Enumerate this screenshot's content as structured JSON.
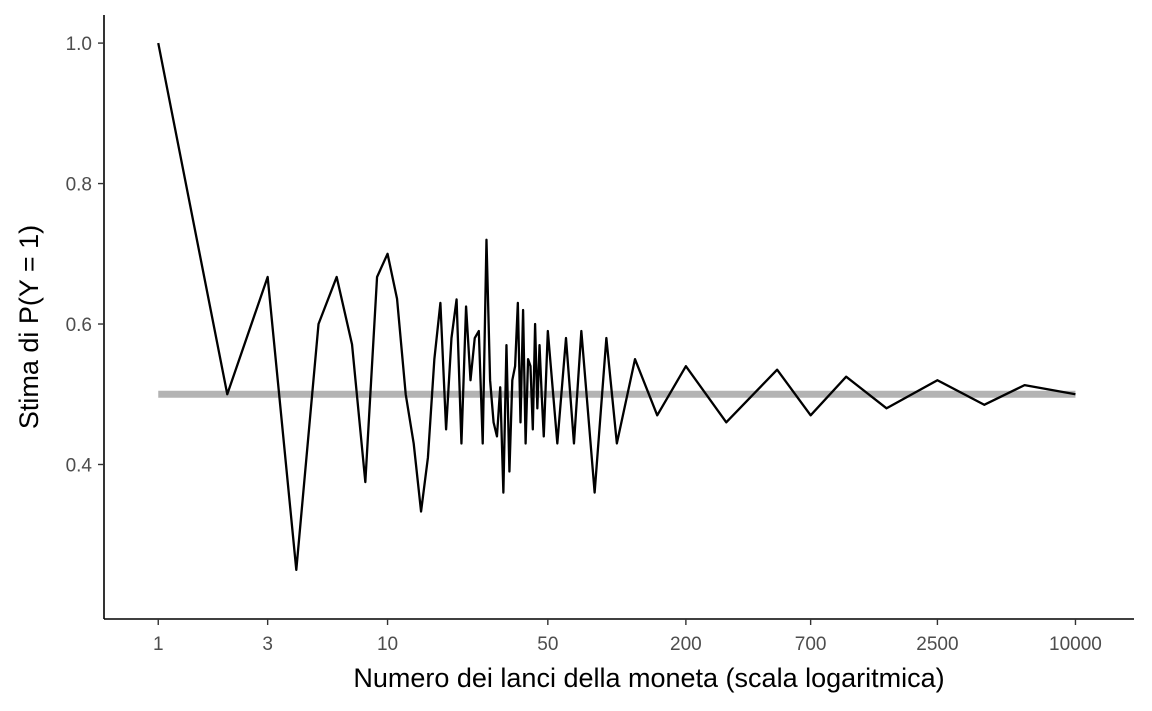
{
  "chart_data": {
    "type": "line",
    "title": "",
    "xlabel": "Numero dei lanci della moneta (scala logaritmica)",
    "ylabel": "Stima di P(Y = 1)",
    "x_scale": "log10",
    "xlim": [
      0.58,
      18000
    ],
    "ylim": [
      0.18,
      1.04
    ],
    "x_ticks": [
      1,
      3,
      10,
      50,
      200,
      700,
      2500,
      10000
    ],
    "x_tick_labels": [
      "1",
      "3",
      "10",
      "50",
      "200",
      "700",
      "2500",
      "10000"
    ],
    "y_ticks": [
      0.4,
      0.6,
      0.8,
      1.0
    ],
    "y_tick_labels": [
      "0.4",
      "0.6",
      "0.8",
      "1.0"
    ],
    "grid": false,
    "reference_line": {
      "y": 0.5,
      "color": "#b3b3b3"
    },
    "series": [
      {
        "color": "#000000",
        "x": [
          1,
          2,
          3,
          4,
          5,
          6,
          7,
          8,
          9,
          10,
          11,
          12,
          13,
          14,
          15,
          16,
          17,
          18,
          19,
          20,
          21,
          22,
          23,
          24,
          25,
          26,
          27,
          28,
          29,
          30,
          31,
          32,
          33,
          34,
          35,
          36,
          37,
          38,
          39,
          40,
          41,
          42,
          43,
          44,
          45,
          46,
          47,
          48,
          50,
          55,
          60,
          65,
          70,
          80,
          90,
          100,
          120,
          150,
          200,
          300,
          500,
          700,
          1000,
          1500,
          2500,
          4000,
          6000,
          10000
        ],
        "y": [
          1.0,
          0.5,
          0.667,
          0.25,
          0.6,
          0.667,
          0.571,
          0.375,
          0.667,
          0.7,
          0.636,
          0.5,
          0.43,
          0.333,
          0.41,
          0.55,
          0.63,
          0.45,
          0.58,
          0.635,
          0.43,
          0.625,
          0.52,
          0.58,
          0.59,
          0.43,
          0.72,
          0.52,
          0.46,
          0.44,
          0.51,
          0.36,
          0.57,
          0.39,
          0.52,
          0.54,
          0.63,
          0.46,
          0.62,
          0.43,
          0.55,
          0.54,
          0.45,
          0.6,
          0.48,
          0.57,
          0.5,
          0.44,
          0.59,
          0.43,
          0.58,
          0.43,
          0.59,
          0.36,
          0.58,
          0.43,
          0.55,
          0.47,
          0.54,
          0.46,
          0.535,
          0.47,
          0.525,
          0.48,
          0.52,
          0.485,
          0.513,
          0.5
        ]
      }
    ]
  }
}
